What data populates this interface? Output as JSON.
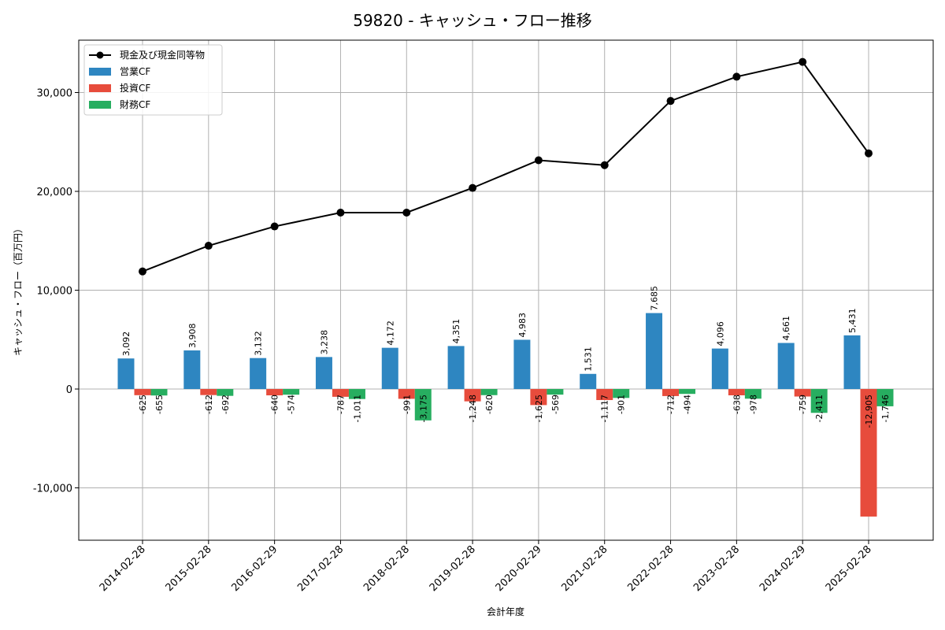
{
  "chart_data": {
    "type": "bar",
    "title": "59820 - キャッシュ・フロー推移",
    "xlabel": "会計年度",
    "ylabel": "キャッシュ・フロー（百万円）",
    "categories": [
      "2014-02-28",
      "2015-02-28",
      "2016-02-29",
      "2017-02-28",
      "2018-02-28",
      "2019-02-28",
      "2020-02-29",
      "2021-02-28",
      "2022-02-28",
      "2023-02-28",
      "2024-02-29",
      "2025-02-28"
    ],
    "ylim": [
      -15300,
      35300
    ],
    "yticks": [
      -10000,
      0,
      10000,
      20000,
      30000
    ],
    "ytick_labels": [
      "-10,000",
      "0",
      "10,000",
      "20,000",
      "30,000"
    ],
    "grid": true,
    "legend_position": "top-left",
    "series": [
      {
        "name": "営業CF",
        "kind": "bar",
        "color": "#2e86c1",
        "values": [
          3092,
          3908,
          3132,
          3238,
          4172,
          4351,
          4983,
          1531,
          7685,
          4096,
          4661,
          5431
        ],
        "labels": [
          "3,092",
          "3,908",
          "3,132",
          "3,238",
          "4,172",
          "4,351",
          "4,983",
          "1,531",
          "7,685",
          "4,096",
          "4,661",
          "5,431"
        ]
      },
      {
        "name": "投資CF",
        "kind": "bar",
        "color": "#e74c3c",
        "values": [
          -625,
          -612,
          -640,
          -787,
          -991,
          -1248,
          -1625,
          -1117,
          -712,
          -638,
          -759,
          -12905
        ],
        "labels": [
          "-625",
          "-612",
          "-640",
          "-787",
          "-991",
          "-1,248",
          "-1,625",
          "-1,117",
          "-712",
          "-638",
          "-759",
          "-12,905"
        ]
      },
      {
        "name": "財務CF",
        "kind": "bar",
        "color": "#27ae60",
        "values": [
          -655,
          -692,
          -574,
          -1011,
          -3175,
          -620,
          -569,
          -901,
          -494,
          -978,
          -2411,
          -1746
        ],
        "labels": [
          "-655",
          "-692",
          "-574",
          "-1,011",
          "-3,175",
          "-620",
          "-569",
          "-901",
          "-494",
          "-978",
          "-2,411",
          "-1,746"
        ]
      },
      {
        "name": "現金及び現金同等物",
        "kind": "line",
        "color": "#000000",
        "values": [
          11900,
          14500,
          16450,
          17850,
          17850,
          20350,
          23150,
          22650,
          29150,
          31600,
          33100,
          23850
        ]
      }
    ]
  }
}
